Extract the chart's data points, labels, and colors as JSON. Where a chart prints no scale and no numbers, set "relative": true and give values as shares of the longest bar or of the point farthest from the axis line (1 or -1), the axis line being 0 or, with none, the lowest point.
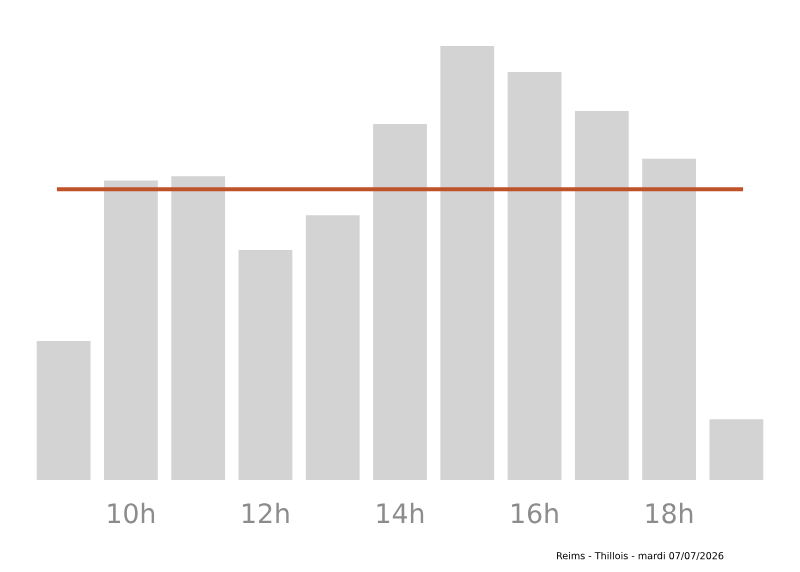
{
  "chart_data": {
    "type": "bar",
    "relative": true,
    "categories": [
      null,
      "10h",
      null,
      "12h",
      null,
      "14h",
      null,
      "16h",
      null,
      "18h",
      null
    ],
    "values": [
      0.32,
      0.69,
      0.7,
      0.53,
      0.61,
      0.82,
      1,
      0.94,
      0.85,
      0.74,
      0.14
    ],
    "color": "#d3d3d3",
    "ref_lines": [
      {
        "axis": "y",
        "value": 0.67,
        "color": "#c0522a"
      }
    ],
    "annotations": [
      "Reims - Thillois - mardi 07/07/2026"
    ]
  }
}
